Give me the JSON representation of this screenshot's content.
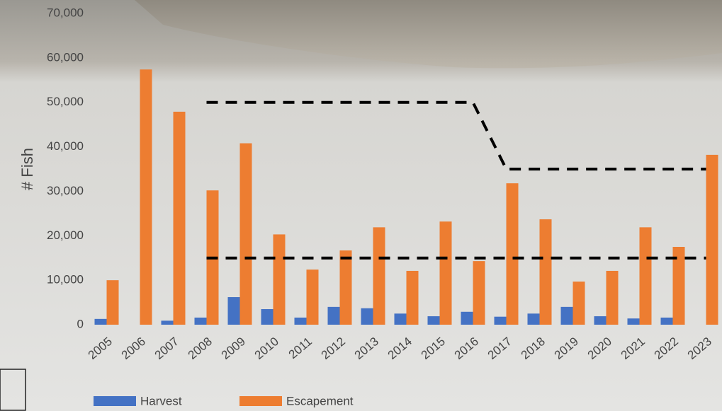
{
  "chart_data": {
    "type": "bar",
    "y_label": "# Fish",
    "categories": [
      "2005",
      "2006",
      "2007",
      "2008",
      "2009",
      "2010",
      "2011",
      "2012",
      "2013",
      "2014",
      "2015",
      "2016",
      "2017",
      "2018",
      "2019",
      "2020",
      "2021",
      "2022",
      "2023"
    ],
    "series": [
      {
        "name": "Harvest",
        "color": "#4472c4",
        "values": [
          1300,
          0,
          900,
          1600,
          6200,
          3500,
          1600,
          4000,
          3700,
          2500,
          1900,
          2900,
          1800,
          2500,
          4000,
          1900,
          1400,
          1600,
          0
        ]
      },
      {
        "name": "Escapement",
        "color": "#ed7d31",
        "values": [
          10000,
          57400,
          47900,
          30200,
          40800,
          20300,
          12400,
          16700,
          21900,
          12100,
          23200,
          14300,
          31800,
          23700,
          9700,
          12100,
          21900,
          17500,
          38200
        ]
      }
    ],
    "goal_lines": [
      {
        "color": "#000000",
        "values": [
          null,
          null,
          null,
          50000,
          50000,
          50000,
          50000,
          50000,
          50000,
          50000,
          50000,
          50000,
          35000,
          35000,
          35000,
          35000,
          35000,
          35000,
          35000
        ]
      },
      {
        "color": "#000000",
        "values": [
          null,
          null,
          null,
          15000,
          15000,
          15000,
          15000,
          15000,
          15000,
          15000,
          15000,
          15000,
          15000,
          15000,
          15000,
          15000,
          15000,
          15000,
          15000
        ]
      }
    ],
    "ylim": [
      0,
      70000
    ],
    "yticks": [
      0,
      {
        "value": 10000,
        "label": "10,000"
      },
      {
        "value": 20000,
        "label": "20,000"
      },
      {
        "value": 30000,
        "label": "30,000"
      },
      {
        "value": 40000,
        "label": "40,000"
      },
      {
        "value": 50000,
        "label": "50,000"
      },
      {
        "value": 60000,
        "label": "60,000"
      },
      {
        "value": 70000,
        "label": "70,000"
      }
    ],
    "grid": false
  }
}
